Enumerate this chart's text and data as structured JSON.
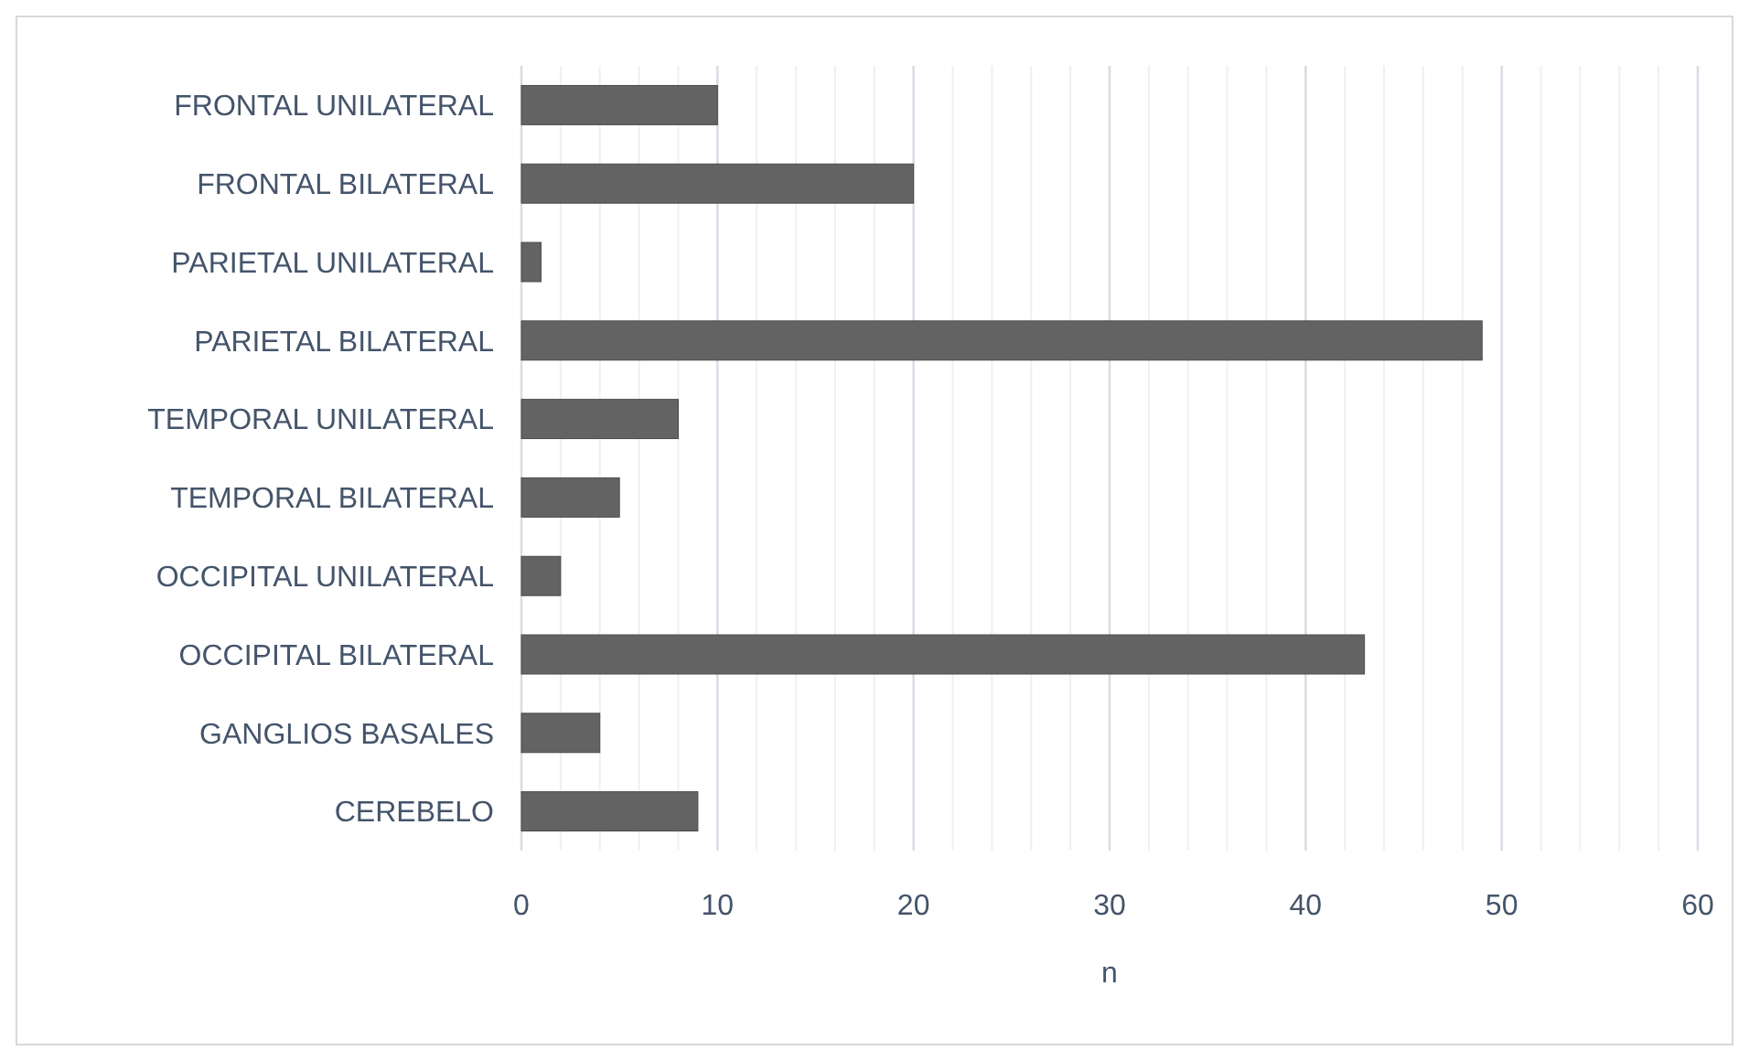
{
  "chart_data": {
    "type": "bar",
    "orientation": "horizontal",
    "xlabel": "n",
    "categories": [
      "FRONTAL UNILATERAL",
      "FRONTAL BILATERAL",
      "PARIETAL UNILATERAL",
      "PARIETAL BILATERAL",
      "TEMPORAL UNILATERAL",
      "TEMPORAL BILATERAL",
      "OCCIPITAL UNILATERAL",
      "OCCIPITAL BILATERAL",
      "GANGLIOS BASALES",
      "CEREBELO"
    ],
    "values": [
      10,
      20,
      1,
      49,
      8,
      5,
      2,
      43,
      4,
      9
    ],
    "color": "#636363",
    "xlim": [
      0,
      60
    ],
    "xticks": [
      0,
      {
        "value": 2,
        "label": null
      },
      {
        "value": 4,
        "label": null
      },
      {
        "value": 6,
        "label": null
      },
      {
        "value": 8,
        "label": null
      },
      10,
      {
        "value": 12,
        "label": null
      },
      {
        "value": 14,
        "label": null
      },
      {
        "value": 16,
        "label": null
      },
      {
        "value": 18,
        "label": null
      },
      20,
      {
        "value": 22,
        "label": null
      },
      {
        "value": 24,
        "label": null
      },
      {
        "value": 26,
        "label": null
      },
      {
        "value": 28,
        "label": null
      },
      30,
      {
        "value": 32,
        "label": null
      },
      {
        "value": 34,
        "label": null
      },
      {
        "value": 36,
        "label": null
      },
      {
        "value": 38,
        "label": null
      },
      40,
      {
        "value": 42,
        "label": null
      },
      {
        "value": 44,
        "label": null
      },
      {
        "value": 46,
        "label": null
      },
      {
        "value": 48,
        "label": null
      },
      50,
      {
        "value": 52,
        "label": null
      },
      {
        "value": 54,
        "label": null
      },
      {
        "value": 56,
        "label": null
      },
      {
        "value": 58,
        "label": null
      },
      60
    ],
    "grid": "x"
  }
}
